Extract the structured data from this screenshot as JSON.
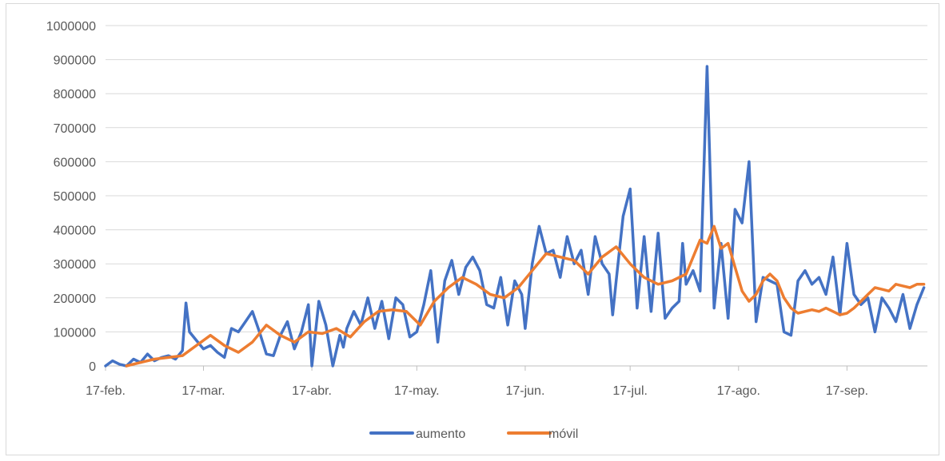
{
  "chart_data": {
    "type": "line",
    "title": "",
    "xlabel": "",
    "ylabel": "",
    "ylim": [
      0,
      1000000
    ],
    "y_ticks": [
      "0",
      "100000",
      "200000",
      "300000",
      "400000",
      "500000",
      "600000",
      "700000",
      "800000",
      "900000",
      "1000000"
    ],
    "x_tick_labels": [
      "17-feb.",
      "17-mar.",
      "17-abr.",
      "17-may.",
      "17-jun.",
      "17-jul.",
      "17-ago.",
      "17-sep."
    ],
    "x_tick_days": [
      0,
      28,
      59,
      89,
      120,
      150,
      181,
      212
    ],
    "x_range_days": [
      0,
      235
    ],
    "grid": "horizontal",
    "legend_position": "bottom",
    "series": [
      {
        "name": "aumento",
        "color": "#4472c4",
        "x_days": [
          0,
          2,
          4,
          6,
          8,
          10,
          12,
          14,
          16,
          18,
          20,
          22,
          23,
          24,
          26,
          28,
          30,
          32,
          34,
          36,
          38,
          40,
          42,
          44,
          46,
          48,
          50,
          52,
          54,
          56,
          58,
          59,
          61,
          63,
          65,
          67,
          68,
          69,
          71,
          73,
          75,
          77,
          79,
          81,
          83,
          85,
          87,
          89,
          91,
          93,
          95,
          97,
          99,
          101,
          103,
          105,
          107,
          109,
          111,
          113,
          115,
          117,
          119,
          120,
          122,
          124,
          126,
          128,
          130,
          132,
          134,
          136,
          138,
          140,
          142,
          144,
          145,
          146,
          148,
          150,
          152,
          154,
          156,
          158,
          160,
          162,
          164,
          165,
          166,
          168,
          170,
          172,
          174,
          176,
          178,
          180,
          182,
          184,
          186,
          188,
          190,
          192,
          194,
          196,
          198,
          200,
          202,
          204,
          206,
          208,
          210,
          212,
          214,
          216,
          218,
          220,
          222,
          224,
          226,
          228,
          230,
          232,
          234
        ],
        "y": [
          0,
          15000,
          5000,
          0,
          20000,
          10000,
          35000,
          15000,
          25000,
          30000,
          20000,
          45000,
          185000,
          100000,
          75000,
          50000,
          60000,
          40000,
          25000,
          110000,
          100000,
          130000,
          160000,
          100000,
          35000,
          30000,
          90000,
          130000,
          50000,
          100000,
          180000,
          0,
          190000,
          120000,
          0,
          90000,
          55000,
          110000,
          160000,
          120000,
          200000,
          110000,
          190000,
          80000,
          200000,
          180000,
          85000,
          100000,
          180000,
          280000,
          70000,
          250000,
          310000,
          210000,
          290000,
          320000,
          280000,
          180000,
          170000,
          260000,
          120000,
          250000,
          210000,
          110000,
          300000,
          410000,
          330000,
          340000,
          260000,
          380000,
          300000,
          340000,
          210000,
          380000,
          300000,
          270000,
          150000,
          250000,
          440000,
          520000,
          170000,
          380000,
          160000,
          390000,
          140000,
          170000,
          190000,
          360000,
          240000,
          280000,
          220000,
          880000,
          170000,
          360000,
          140000,
          460000,
          420000,
          600000,
          130000,
          260000,
          250000,
          240000,
          100000,
          90000,
          250000,
          280000,
          240000,
          260000,
          210000,
          320000,
          150000,
          360000,
          210000,
          180000,
          200000,
          100000,
          200000,
          170000,
          130000,
          210000,
          110000,
          180000,
          230000
        ],
        "note_values": "read at ~2-day resolution"
      },
      {
        "name": "móvil",
        "color": "#ed7d31",
        "x_days": [
          6,
          10,
          14,
          18,
          22,
          26,
          30,
          34,
          38,
          42,
          46,
          50,
          54,
          58,
          62,
          66,
          70,
          74,
          78,
          82,
          86,
          90,
          94,
          98,
          102,
          106,
          110,
          114,
          118,
          122,
          126,
          130,
          134,
          138,
          142,
          146,
          150,
          154,
          158,
          162,
          166,
          170,
          172,
          174,
          176,
          178,
          180,
          182,
          184,
          186,
          188,
          190,
          192,
          194,
          196,
          198,
          200,
          202,
          204,
          206,
          208,
          210,
          212,
          214,
          216,
          218,
          220,
          222,
          224,
          226,
          228,
          230,
          232,
          234
        ],
        "y": [
          0,
          10000,
          20000,
          25000,
          30000,
          60000,
          90000,
          60000,
          40000,
          70000,
          120000,
          90000,
          70000,
          100000,
          95000,
          110000,
          85000,
          130000,
          160000,
          165000,
          160000,
          120000,
          190000,
          230000,
          260000,
          240000,
          210000,
          200000,
          230000,
          280000,
          330000,
          320000,
          310000,
          270000,
          320000,
          350000,
          300000,
          260000,
          240000,
          250000,
          270000,
          370000,
          360000,
          410000,
          345000,
          360000,
          290000,
          220000,
          190000,
          210000,
          250000,
          270000,
          250000,
          200000,
          170000,
          155000,
          160000,
          165000,
          160000,
          170000,
          160000,
          150000,
          155000,
          170000,
          190000,
          210000,
          230000,
          225000,
          220000,
          240000,
          235000,
          230000,
          240000,
          240000
        ]
      }
    ]
  }
}
